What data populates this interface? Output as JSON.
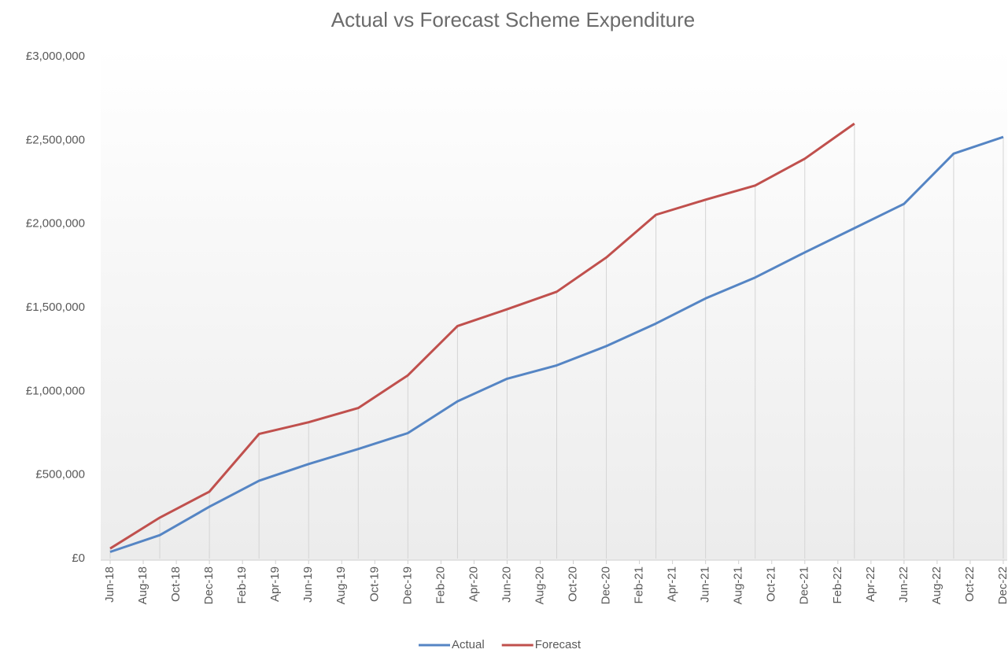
{
  "chart_data": {
    "type": "line",
    "title": "Actual vs Forecast Scheme Expenditure",
    "x": [
      "Jun-18",
      "Sep-18",
      "Dec-18",
      "Mar-19",
      "Jun-19",
      "Sep-19",
      "Dec-19",
      "Mar-20",
      "Jun-20",
      "Sep-20",
      "Dec-20",
      "Mar-21",
      "Jun-21",
      "Sep-21",
      "Dec-21",
      "Mar-22",
      "Jun-22",
      "Sep-22",
      "Dec-22"
    ],
    "series": [
      {
        "name": "Actual",
        "color": "#5585c4",
        "values": [
          40000,
          140000,
          310000,
          465000,
          565000,
          655000,
          750000,
          940000,
          1075000,
          1155000,
          1270000,
          1405000,
          1555000,
          1680000,
          1830000,
          1975000,
          2120000,
          2420000,
          2520000
        ]
      },
      {
        "name": "Forecast",
        "color": "#c0504d",
        "values": [
          60000,
          245000,
          400000,
          745000,
          815000,
          900000,
          1095000,
          1390000,
          1490000,
          1595000,
          1800000,
          2055000,
          2145000,
          2230000,
          2390000,
          2600000,
          null,
          null,
          null
        ]
      }
    ],
    "xticks": [
      "Jun-18",
      "Aug-18",
      "Oct-18",
      "Dec-18",
      "Feb-19",
      "Apr-19",
      "Jun-19",
      "Aug-19",
      "Oct-19",
      "Dec-19",
      "Feb-20",
      "Apr-20",
      "Jun-20",
      "Aug-20",
      "Oct-20",
      "Dec-20",
      "Feb-21",
      "Apr-21",
      "Jun-21",
      "Aug-21",
      "Oct-21",
      "Dec-21",
      "Feb-22",
      "Apr-22",
      "Jun-22",
      "Aug-22",
      "Oct-22",
      "Dec-22"
    ],
    "xlim": [
      "Jun-18",
      "Dec-22"
    ],
    "ylim": [
      0,
      3000000
    ],
    "yticks": [
      {
        "value": 0,
        "label": "£0"
      },
      {
        "value": 500000,
        "label": "£500,000"
      },
      {
        "value": 1000000,
        "label": "£1,000,000"
      },
      {
        "value": 1500000,
        "label": "£1,500,000"
      },
      {
        "value": 2000000,
        "label": "£2,000,000"
      },
      {
        "value": 2500000,
        "label": "£2,500,000"
      },
      {
        "value": 3000000,
        "label": "£3,000,000"
      }
    ],
    "legend": "bottom",
    "drop_lines": true
  }
}
